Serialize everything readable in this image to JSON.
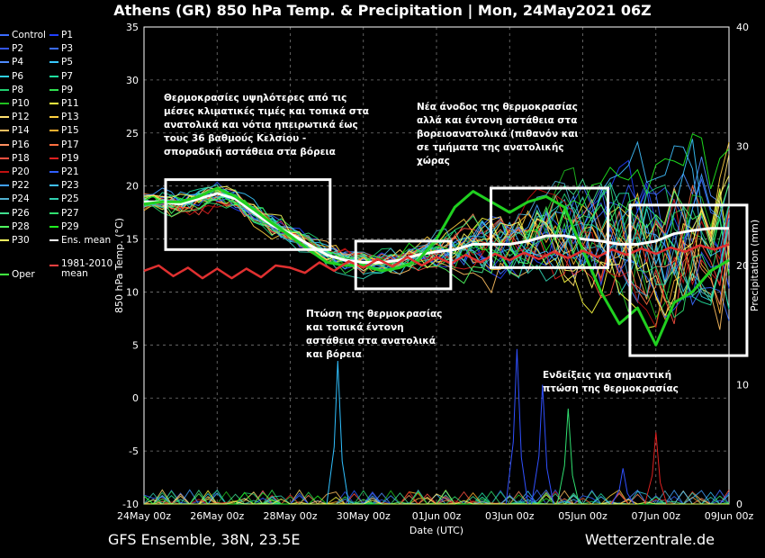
{
  "title": "Athens  (GR)  850 hPa Temp. & Precipitation | Mon, 24May2021 06Z",
  "footer": {
    "left": "GFS Ensemble, 38N, 23.5E",
    "right": "Wetterzentrale.de"
  },
  "legend": [
    {
      "label": "Control",
      "color": "#3b6cff"
    },
    {
      "label": "P1",
      "color": "#2040ff"
    },
    {
      "label": "P2",
      "color": "#3355ee"
    },
    {
      "label": "P3",
      "color": "#3b6cff"
    },
    {
      "label": "P4",
      "color": "#4f8cff"
    },
    {
      "label": "P5",
      "color": "#38c8ff"
    },
    {
      "label": "P6",
      "color": "#30d0e0"
    },
    {
      "label": "P7",
      "color": "#20e0a0"
    },
    {
      "label": "P8",
      "color": "#20d070"
    },
    {
      "label": "P9",
      "color": "#30e050"
    },
    {
      "label": "P10",
      "color": "#20c020"
    },
    {
      "label": "P11",
      "color": "#ffff40"
    },
    {
      "label": "P12",
      "color": "#ffe070"
    },
    {
      "label": "P13",
      "color": "#ffd040"
    },
    {
      "label": "P14",
      "color": "#ffc060"
    },
    {
      "label": "P15",
      "color": "#ffb030"
    },
    {
      "label": "P16",
      "color": "#ff9060"
    },
    {
      "label": "P17",
      "color": "#ff7040"
    },
    {
      "label": "P18",
      "color": "#ff5040"
    },
    {
      "label": "P19",
      "color": "#e02020"
    },
    {
      "label": "P20",
      "color": "#c01010"
    },
    {
      "label": "P21",
      "color": "#3060ff"
    },
    {
      "label": "P22",
      "color": "#40a0ff"
    },
    {
      "label": "P23",
      "color": "#40c0ff"
    },
    {
      "label": "P24",
      "color": "#50b0d0"
    },
    {
      "label": "P25",
      "color": "#30d0b0"
    },
    {
      "label": "P26",
      "color": "#40e090"
    },
    {
      "label": "P27",
      "color": "#30e070"
    },
    {
      "label": "P28",
      "color": "#50ff60"
    },
    {
      "label": "P29",
      "color": "#20f020"
    },
    {
      "label": "P30",
      "color": "#ffff60"
    },
    {
      "label": "Ens. mean",
      "color": "#ffffff"
    },
    {
      "label": "Oper",
      "color": "#40ff40"
    },
    {
      "label": "1981-2010 mean",
      "color": "#ff4040"
    }
  ],
  "annotations": [
    {
      "lines": [
        "Θερμοκρασίες υψηλότερες από τις",
        "μέσες κλιματικές τιμές και τοπικά στα",
        "ανατολικά και νότια ηπειρωτικά έως",
        "τους 36 βαθμούς Κελσίου -",
        "σποραδική αστάθεια στα βόρεια"
      ]
    },
    {
      "lines": [
        "Νέα άνοδος της θερμοκρασίας",
        "αλλά και έντονη αστάθεια στα",
        "βορειοανατολικά (πιθανόν και",
        "σε τμήματα της ανατολικής",
        "χώρας"
      ]
    },
    {
      "lines": [
        "Πτώση της θερμοκρασίας",
        "και τοπικά έντονη",
        "αστάθεια στα ανατολικά",
        "και βόρεια"
      ]
    },
    {
      "lines": [
        "Ενδείξεις για σημαντική",
        "πτώση της θερμοκρασίας"
      ]
    }
  ],
  "chart_data": {
    "type": "line",
    "title": "Athens  (GR)  850 hPa Temp. & Precipitation | Mon, 24May2021 06Z",
    "xlabel": "Date (UTC)",
    "ylabel": "850 hPa Temp. (°C)",
    "y2label": "Precipitation (mm)",
    "xlim": [
      0,
      16
    ],
    "ylim": [
      -10,
      35
    ],
    "y2lim": [
      0,
      40
    ],
    "yticks": [
      -10,
      -5,
      0,
      5,
      10,
      15,
      20,
      25,
      30,
      35
    ],
    "y2ticks": [
      0,
      10,
      20,
      30,
      40
    ],
    "xticks": [
      {
        "day": 0,
        "label": "24May 00z"
      },
      {
        "day": 2,
        "label": "26May 00z"
      },
      {
        "day": 4,
        "label": "28May 00z"
      },
      {
        "day": 6,
        "label": "30May 00z"
      },
      {
        "day": 8,
        "label": "01Jun 00z"
      },
      {
        "day": 10,
        "label": "03Jun 00z"
      },
      {
        "day": 12,
        "label": "05Jun 00z"
      },
      {
        "day": 14,
        "label": "07Jun 00z"
      },
      {
        "day": 16,
        "label": "09Jun 00z"
      }
    ],
    "grid": true,
    "legend_position": "left",
    "series": [
      {
        "name": "Ens. mean",
        "color": "#ffffff",
        "width": 3,
        "points": [
          [
            0,
            18.5
          ],
          [
            0.5,
            18.5
          ],
          [
            1,
            18.3
          ],
          [
            1.5,
            18.8
          ],
          [
            2,
            19.3
          ],
          [
            2.5,
            18.8
          ],
          [
            3,
            17.5
          ],
          [
            3.5,
            16.3
          ],
          [
            4,
            15.5
          ],
          [
            4.5,
            14.5
          ],
          [
            5,
            13.5
          ],
          [
            5.5,
            13
          ],
          [
            6,
            12.8
          ],
          [
            6.5,
            12.8
          ],
          [
            7,
            13
          ],
          [
            7.5,
            13.5
          ],
          [
            8,
            13.8
          ],
          [
            8.5,
            14
          ],
          [
            9,
            14.5
          ],
          [
            9.5,
            14.5
          ],
          [
            10,
            14.5
          ],
          [
            10.5,
            14.8
          ],
          [
            11,
            15.3
          ],
          [
            11.5,
            15.3
          ],
          [
            12,
            15
          ],
          [
            12.5,
            14.8
          ],
          [
            13,
            14.5
          ],
          [
            13.5,
            14.5
          ],
          [
            14,
            14.8
          ],
          [
            14.5,
            15.5
          ],
          [
            15,
            15.8
          ],
          [
            15.5,
            16
          ],
          [
            16,
            16
          ]
        ]
      },
      {
        "name": "Oper",
        "color": "#20d020",
        "width": 3,
        "points": [
          [
            0,
            18.3
          ],
          [
            0.5,
            18.5
          ],
          [
            1,
            18.5
          ],
          [
            1.5,
            19
          ],
          [
            2,
            19.8
          ],
          [
            2.5,
            19
          ],
          [
            3,
            17.8
          ],
          [
            3.5,
            16.5
          ],
          [
            4,
            15.3
          ],
          [
            4.5,
            14
          ],
          [
            5,
            12.8
          ],
          [
            5.5,
            12.5
          ],
          [
            6,
            12.5
          ],
          [
            6.5,
            12
          ],
          [
            7,
            12.3
          ],
          [
            7.5,
            13
          ],
          [
            8,
            15
          ],
          [
            8.5,
            18
          ],
          [
            9,
            19.5
          ],
          [
            9.5,
            18.5
          ],
          [
            10,
            17.5
          ],
          [
            10.5,
            18.5
          ],
          [
            11,
            19
          ],
          [
            11.5,
            18
          ],
          [
            12,
            14
          ],
          [
            12.5,
            10
          ],
          [
            13,
            7
          ],
          [
            13.5,
            8.5
          ],
          [
            14,
            5
          ],
          [
            14.5,
            9
          ],
          [
            15,
            10
          ],
          [
            15.5,
            12
          ],
          [
            16,
            13
          ]
        ]
      },
      {
        "name": "1981-2010 mean",
        "color": "#e03030",
        "width": 2.5,
        "points": [
          [
            0,
            12
          ],
          [
            0.4,
            12.5
          ],
          [
            0.8,
            11.5
          ],
          [
            1.2,
            12.3
          ],
          [
            1.6,
            11.3
          ],
          [
            2,
            12.2
          ],
          [
            2.4,
            11.3
          ],
          [
            2.8,
            12.2
          ],
          [
            3.2,
            11.4
          ],
          [
            3.6,
            12.5
          ],
          [
            4,
            12.3
          ],
          [
            4.4,
            11.8
          ],
          [
            4.8,
            12.8
          ],
          [
            5.2,
            12
          ],
          [
            5.6,
            12.9
          ],
          [
            6,
            12.3
          ],
          [
            6.4,
            13.1
          ],
          [
            6.8,
            12.4
          ],
          [
            7.2,
            13.3
          ],
          [
            7.6,
            12.5
          ],
          [
            8,
            13.3
          ],
          [
            8.4,
            12.7
          ],
          [
            8.8,
            13.5
          ],
          [
            9.2,
            12.8
          ],
          [
            9.6,
            13.6
          ],
          [
            10,
            13
          ],
          [
            10.4,
            13.7
          ],
          [
            10.8,
            13.1
          ],
          [
            11.2,
            13.8
          ],
          [
            11.6,
            13.2
          ],
          [
            12,
            13.9
          ],
          [
            12.4,
            13.3
          ],
          [
            12.8,
            14
          ],
          [
            13.2,
            13.5
          ],
          [
            13.6,
            14.1
          ],
          [
            14,
            13.6
          ],
          [
            14.4,
            14.2
          ],
          [
            14.8,
            13.8
          ],
          [
            15.2,
            14.4
          ],
          [
            15.6,
            14
          ],
          [
            16,
            14.5
          ]
        ]
      }
    ],
    "precip_peaks_mm": [
      {
        "day": 5.3,
        "mm": 12,
        "color": "#30c0ff"
      },
      {
        "day": 10.2,
        "mm": 13,
        "color": "#3050ff"
      },
      {
        "day": 10.9,
        "mm": 10,
        "color": "#3050ff"
      },
      {
        "day": 11.6,
        "mm": 8,
        "color": "#30e070"
      },
      {
        "day": 14.0,
        "mm": 6,
        "color": "#e02020"
      },
      {
        "day": 13.1,
        "mm": 3,
        "color": "#3050ff"
      }
    ],
    "highlight_boxes_days_temp": [
      {
        "x0": 0,
        "x1": 4.5,
        "y0": 14,
        "y1": 20.6
      },
      {
        "x0": 5.2,
        "x1": 7.8,
        "y0": 10.3,
        "y1": 14.8
      },
      {
        "x0": 8.9,
        "x1": 12.1,
        "y0": 12.3,
        "y1": 19.8
      },
      {
        "x0": 12.7,
        "x1": 15.9,
        "y0": 4,
        "y1": 18.2
      }
    ]
  }
}
